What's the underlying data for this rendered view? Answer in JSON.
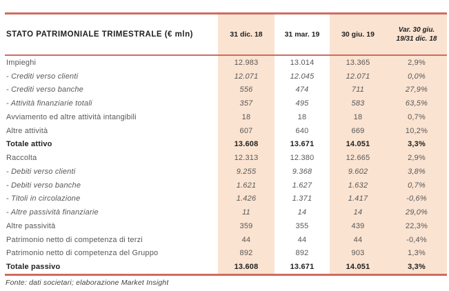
{
  "colors": {
    "accent_red": "#cf6b60",
    "band_peach": "#fbe3d1",
    "text_gray": "#575757",
    "text_dark": "#1f1f1f"
  },
  "table": {
    "title": "STATO PATRIMONIALE TRIMESTRALE (€ mln)",
    "columns": [
      "31 dic. 18",
      "31 mar. 19",
      "30 giu. 19",
      "Var. 30 giu. 19/31 dic. 18"
    ],
    "rows": [
      {
        "label": "Impieghi",
        "style": "normal",
        "values": [
          "12.983",
          "13.014",
          "13.365",
          "2,9%"
        ]
      },
      {
        "label": "- Crediti verso clienti",
        "style": "detail-italic",
        "values": [
          "12.071",
          "12.045",
          "12.071",
          "0,0%"
        ]
      },
      {
        "label": "- Crediti verso banche",
        "style": "detail-italic",
        "values": [
          "556",
          "474",
          "711",
          "27,9%"
        ]
      },
      {
        "label": "- Attività finanziarie totali",
        "style": "detail-italic",
        "values": [
          "357",
          "495",
          "583",
          "63,5%"
        ]
      },
      {
        "label": "Avviamento ed altre attività intangibili",
        "style": "normal",
        "values": [
          "18",
          "18",
          "18",
          "0,7%"
        ]
      },
      {
        "label": "Altre attività",
        "style": "normal",
        "values": [
          "607",
          "640",
          "669",
          "10,2%"
        ]
      },
      {
        "label": "Totale attivo",
        "style": "total-bold",
        "values": [
          "13.608",
          "13.671",
          "14.051",
          "3,3%"
        ]
      },
      {
        "label": "Raccolta",
        "style": "normal",
        "values": [
          "12.313",
          "12.380",
          "12.665",
          "2,9%"
        ]
      },
      {
        "label": "- Debiti verso clienti",
        "style": "detail-italic",
        "values": [
          "9.255",
          "9.368",
          "9.602",
          "3,8%"
        ]
      },
      {
        "label": "- Debiti verso banche",
        "style": "detail-italic",
        "values": [
          "1.621",
          "1.627",
          "1.632",
          "0,7%"
        ]
      },
      {
        "label": "- Titoli in circolazione",
        "style": "detail-italic",
        "values": [
          "1.426",
          "1.371",
          "1.417",
          "-0,6%"
        ]
      },
      {
        "label": "- Altre passività finanziarie",
        "style": "detail-italic",
        "values": [
          "11",
          "14",
          "14",
          "29,0%"
        ]
      },
      {
        "label": "Altre passività",
        "style": "normal",
        "values": [
          "359",
          "355",
          "439",
          "22,3%"
        ]
      },
      {
        "label": "Patrimonio netto di competenza di terzi",
        "style": "normal",
        "values": [
          "44",
          "44",
          "44",
          "-0,4%"
        ]
      },
      {
        "label": "Patrimonio netto di competenza del Gruppo",
        "style": "normal",
        "values": [
          "892",
          "892",
          "903",
          "1,3%"
        ]
      },
      {
        "label": "Totale passivo",
        "style": "total-bold",
        "values": [
          "13.608",
          "13.671",
          "14.051",
          "3,3%"
        ]
      }
    ]
  },
  "footer": {
    "source": "Fonte: dati societari; elaborazione Market Insight"
  }
}
